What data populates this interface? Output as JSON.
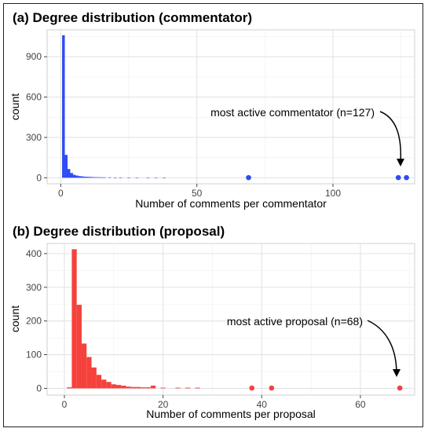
{
  "chart_data": [
    {
      "type": "histogram",
      "title": "(a) Degree distribution (commentator)",
      "xlabel": "Number of comments per commentator",
      "ylabel": "count",
      "xlim": [
        -5,
        130
      ],
      "ylim": [
        -45,
        1100
      ],
      "xticks": [
        0,
        50,
        100
      ],
      "yticks": [
        0,
        300,
        600,
        900
      ],
      "color": "#2f4bf5",
      "grid": true,
      "bins": [
        {
          "x": 1,
          "count": 1060
        },
        {
          "x": 2,
          "count": 170
        },
        {
          "x": 3,
          "count": 65
        },
        {
          "x": 4,
          "count": 35
        },
        {
          "x": 5,
          "count": 22
        },
        {
          "x": 6,
          "count": 16
        },
        {
          "x": 7,
          "count": 12
        },
        {
          "x": 8,
          "count": 10
        },
        {
          "x": 9,
          "count": 8
        },
        {
          "x": 10,
          "count": 7
        },
        {
          "x": 11,
          "count": 6
        },
        {
          "x": 12,
          "count": 5
        },
        {
          "x": 13,
          "count": 4
        },
        {
          "x": 14,
          "count": 4
        },
        {
          "x": 15,
          "count": 3
        },
        {
          "x": 16,
          "count": 3
        },
        {
          "x": 18,
          "count": 3
        },
        {
          "x": 20,
          "count": 2
        },
        {
          "x": 22,
          "count": 2
        },
        {
          "x": 25,
          "count": 2
        },
        {
          "x": 28,
          "count": 2
        },
        {
          "x": 32,
          "count": 2
        },
        {
          "x": 35,
          "count": 2
        },
        {
          "x": 38,
          "count": 1
        }
      ],
      "points": [
        {
          "x": 69,
          "y": 1
        },
        {
          "x": 124,
          "y": 1
        },
        {
          "x": 127,
          "y": 1
        }
      ],
      "annotation": {
        "text": "most active commentator (n=127)",
        "x": 127
      }
    },
    {
      "type": "histogram",
      "title": "(b) Degree distribution (proposal)",
      "xlabel": "Number of comments per proposal",
      "ylabel": "count",
      "xlim": [
        -3.5,
        71
      ],
      "ylim": [
        -20,
        430
      ],
      "xticks": [
        0,
        20,
        40,
        60
      ],
      "yticks": [
        0,
        100,
        200,
        300,
        400
      ],
      "color": "#f5413c",
      "grid": true,
      "bins": [
        {
          "x": 1,
          "count": 3
        },
        {
          "x": 2,
          "count": 413
        },
        {
          "x": 3,
          "count": 248
        },
        {
          "x": 4,
          "count": 133
        },
        {
          "x": 5,
          "count": 93
        },
        {
          "x": 6,
          "count": 62
        },
        {
          "x": 7,
          "count": 40
        },
        {
          "x": 8,
          "count": 26
        },
        {
          "x": 9,
          "count": 19
        },
        {
          "x": 10,
          "count": 12
        },
        {
          "x": 11,
          "count": 10
        },
        {
          "x": 12,
          "count": 8
        },
        {
          "x": 13,
          "count": 5
        },
        {
          "x": 14,
          "count": 4
        },
        {
          "x": 15,
          "count": 4
        },
        {
          "x": 16,
          "count": 3
        },
        {
          "x": 17,
          "count": 3
        },
        {
          "x": 18,
          "count": 8
        },
        {
          "x": 20,
          "count": 2
        },
        {
          "x": 23,
          "count": 2
        },
        {
          "x": 25,
          "count": 2
        },
        {
          "x": 27,
          "count": 2
        }
      ],
      "points": [
        {
          "x": 38,
          "y": 1
        },
        {
          "x": 42,
          "y": 1
        },
        {
          "x": 68,
          "y": 1
        }
      ],
      "annotation": {
        "text": "most active proposal (n=68)",
        "x": 68
      }
    }
  ]
}
